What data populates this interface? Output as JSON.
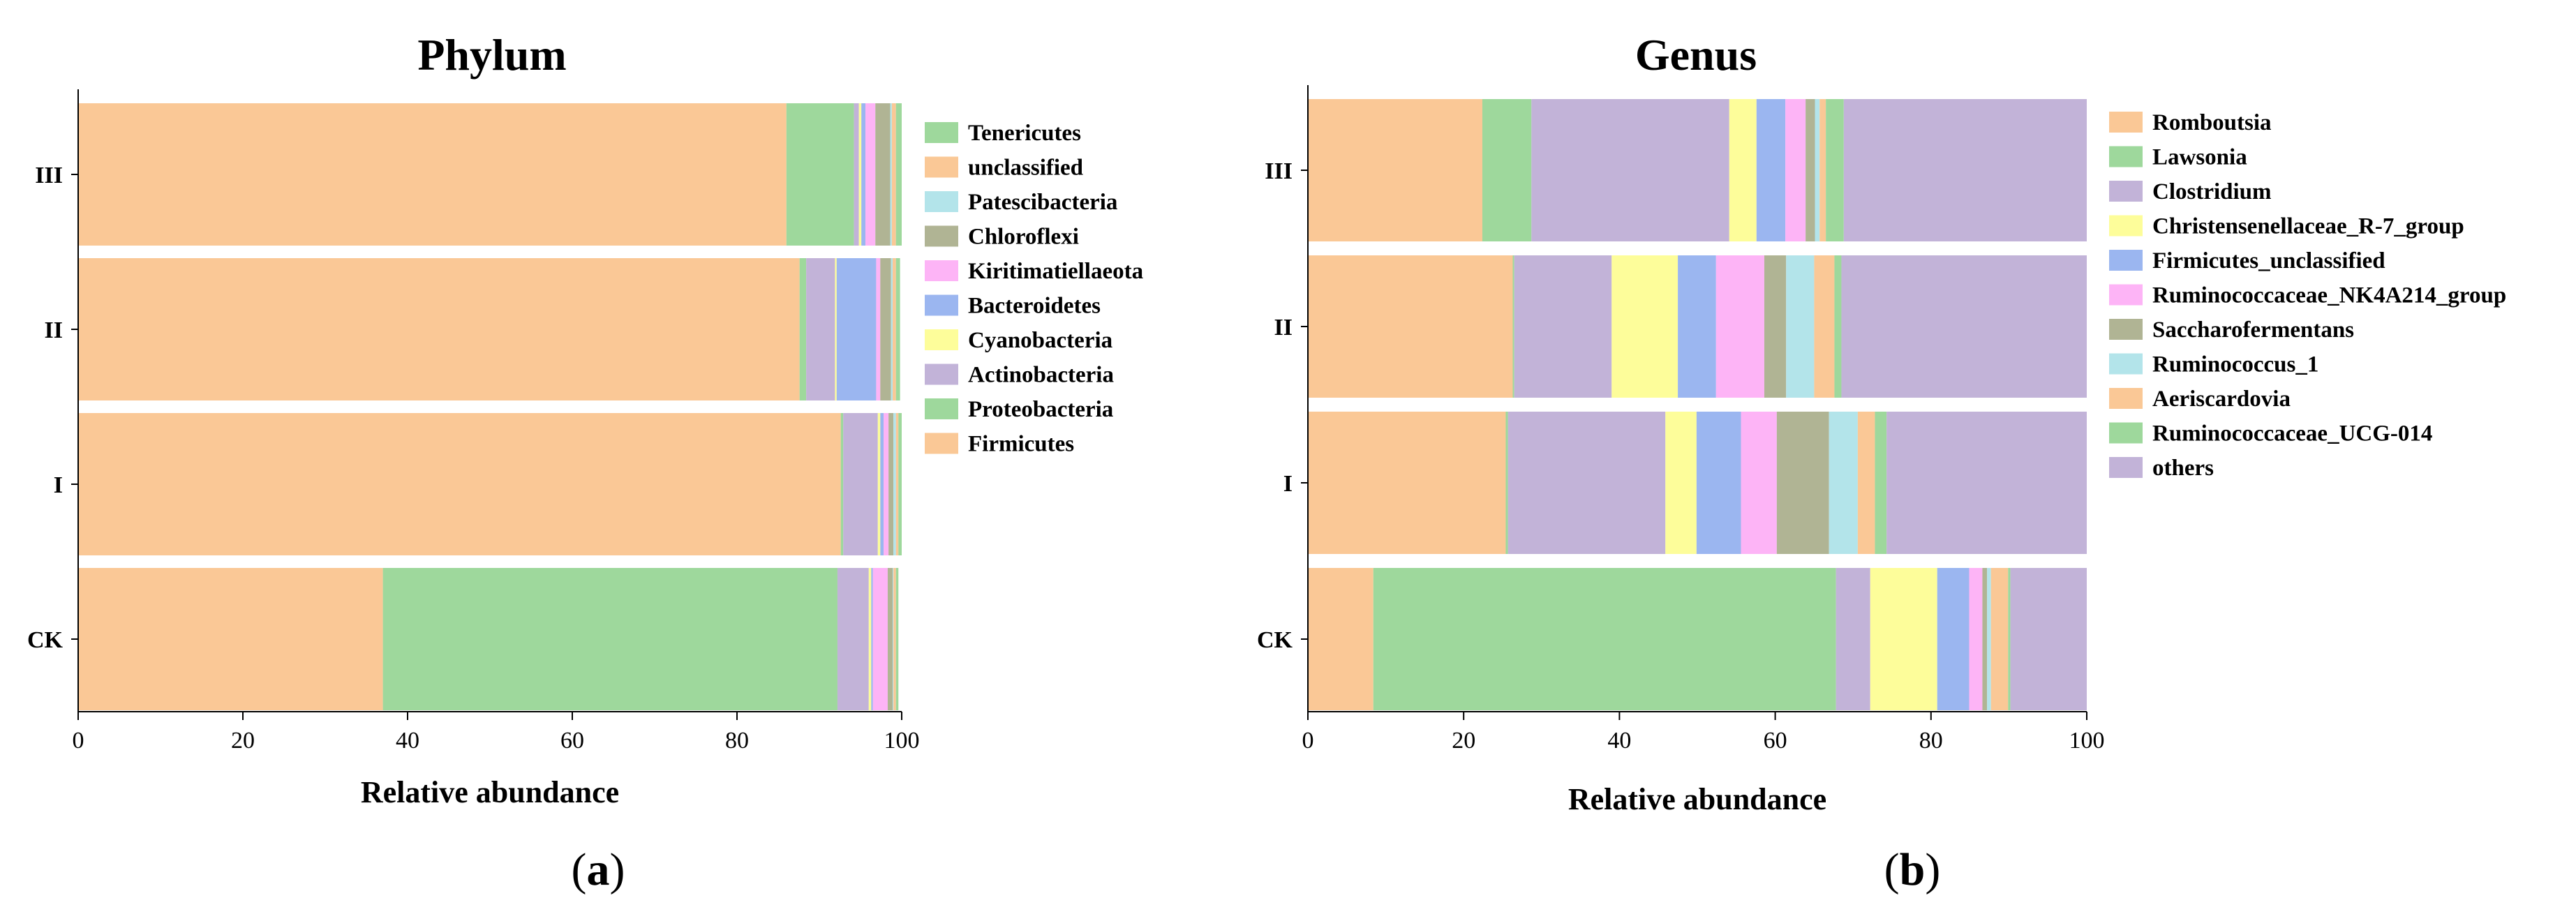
{
  "colors": {
    "orange": "#fac896",
    "green": "#9ed89c",
    "lightblue": "#b3e4ea",
    "olive": "#b0b494",
    "pink": "#fdb4f6",
    "blue": "#9bb6f0",
    "yellow": "#fdfd9a",
    "purple": "#c2b3d8"
  },
  "chart_data": [
    {
      "id": "phylum",
      "type": "bar",
      "orientation": "horizontal",
      "stacked": true,
      "title": "Phylum",
      "xlabel": "Relative abundance",
      "ylabel": "",
      "xlim": [
        0,
        100
      ],
      "xticks": [
        "0",
        "20",
        "40",
        "60",
        "80",
        "100"
      ],
      "categories": [
        "III",
        "II",
        "I",
        "CK"
      ],
      "panel_label": {
        "open": "(",
        "letter": "a",
        "close": ")"
      },
      "series": [
        {
          "name": "Firmicutes",
          "color": "orange",
          "values": [
            86.0,
            87.6,
            92.6,
            37.0
          ]
        },
        {
          "name": "Proteobacteria",
          "color": "green",
          "values": [
            8.2,
            0.8,
            0.3,
            55.2
          ]
        },
        {
          "name": "Actinobacteria",
          "color": "purple",
          "values": [
            0.6,
            3.5,
            4.2,
            3.8
          ]
        },
        {
          "name": "Cyanobacteria",
          "color": "yellow",
          "values": [
            0.3,
            0.2,
            0.3,
            0.3
          ]
        },
        {
          "name": "Bacteroidetes",
          "color": "blue",
          "values": [
            0.5,
            4.8,
            0.4,
            0.2
          ]
        },
        {
          "name": "Kiritimatiellaeota",
          "color": "pink",
          "values": [
            1.2,
            0.5,
            0.6,
            1.8
          ]
        },
        {
          "name": "Chloroflexi",
          "color": "olive",
          "values": [
            1.8,
            1.3,
            0.6,
            0.6
          ]
        },
        {
          "name": "Patescibacteria",
          "color": "lightblue",
          "values": [
            0.2,
            0.2,
            0.3,
            0.1
          ]
        },
        {
          "name": "unclassified",
          "color": "orange",
          "values": [
            0.5,
            0.4,
            0.3,
            0.3
          ]
        },
        {
          "name": "Tenericutes",
          "color": "green",
          "values": [
            0.7,
            0.5,
            0.4,
            0.3
          ]
        }
      ],
      "legend": [
        "Tenericutes",
        "unclassified",
        "Patescibacteria",
        "Chloroflexi",
        "Kiritimatiellaeota",
        "Bacteroidetes",
        "Cyanobacteria",
        "Actinobacteria",
        "Proteobacteria",
        "Firmicutes"
      ]
    },
    {
      "id": "genus",
      "type": "bar",
      "orientation": "horizontal",
      "stacked": true,
      "title": "Genus",
      "xlabel": "Relative abundance",
      "ylabel": "",
      "xlim": [
        0,
        100
      ],
      "xticks": [
        "0",
        "20",
        "40",
        "60",
        "80",
        "100"
      ],
      "categories": [
        "III",
        "II",
        "I",
        "CK"
      ],
      "panel_label": {
        "open": "(",
        "letter": "b",
        "close": ")"
      },
      "series": [
        {
          "name": "Romboutsia",
          "color": "orange",
          "values": [
            22.4,
            26.3,
            25.4,
            8.4
          ]
        },
        {
          "name": "Lawsonia",
          "color": "green",
          "values": [
            6.3,
            0.2,
            0.3,
            59.4
          ]
        },
        {
          "name": "Clostridium",
          "color": "purple",
          "values": [
            25.4,
            12.5,
            20.2,
            4.4
          ]
        },
        {
          "name": "Christensenellaceae_R-7_group",
          "color": "yellow",
          "values": [
            3.5,
            8.5,
            4.0,
            8.6
          ]
        },
        {
          "name": "Firmicutes_unclassified",
          "color": "blue",
          "values": [
            3.7,
            4.9,
            5.7,
            4.1
          ]
        },
        {
          "name": "Ruminococcaceae_NK4A214_group",
          "color": "pink",
          "values": [
            2.6,
            6.2,
            4.6,
            1.7
          ]
        },
        {
          "name": "Saccharofermentans",
          "color": "olive",
          "values": [
            1.2,
            2.8,
            6.7,
            0.6
          ]
        },
        {
          "name": "Ruminococcus_1",
          "color": "lightblue",
          "values": [
            0.6,
            3.6,
            3.7,
            0.5
          ]
        },
        {
          "name": "Aeriscardovia",
          "color": "orange",
          "values": [
            0.8,
            2.6,
            2.2,
            2.2
          ]
        },
        {
          "name": "Ruminococcaceae_UCG-014",
          "color": "green",
          "values": [
            2.3,
            0.9,
            1.5,
            0.3
          ]
        },
        {
          "name": "others",
          "color": "purple",
          "values": [
            31.2,
            31.5,
            25.7,
            9.8
          ]
        }
      ],
      "legend": [
        "Romboutsia",
        "Lawsonia",
        "Clostridium",
        "Christensenellaceae_R-7_group",
        "Firmicutes_unclassified",
        "Ruminococcaceae_NK4A214_group",
        "Saccharofermentans",
        "Ruminococcus_1",
        "Aeriscardovia",
        "Ruminococcaceae_UCG-014",
        "others"
      ]
    }
  ]
}
